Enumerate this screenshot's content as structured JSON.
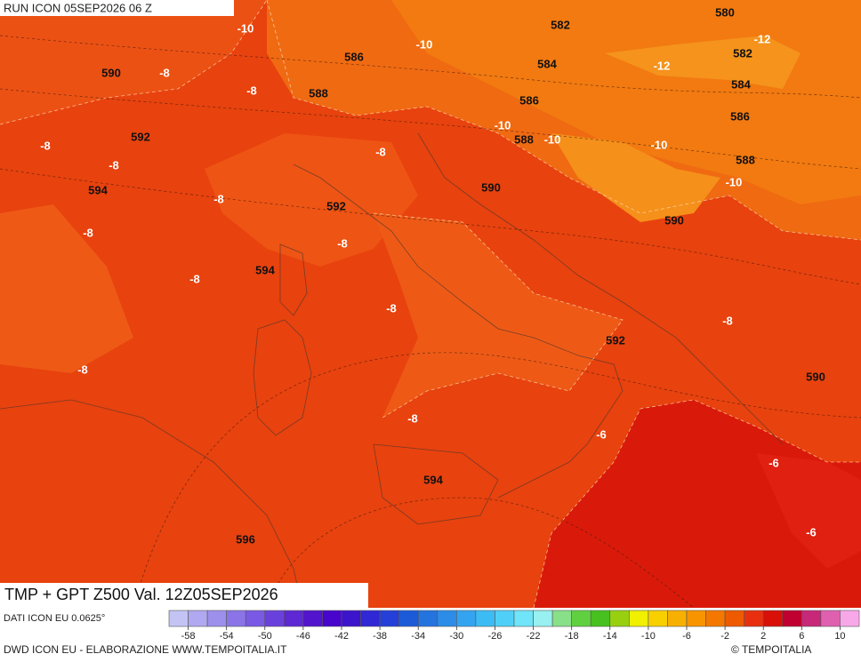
{
  "header": {
    "run": "RUN ICON 05SEP2026 06 Z"
  },
  "map": {
    "title": "TMP + GPT Z500 Val. 12Z05SEP2026",
    "gpt_labels": [
      580,
      582,
      586,
      584,
      582,
      590,
      588,
      584,
      586,
      586,
      592,
      588,
      588,
      594,
      590,
      592,
      590,
      594,
      592,
      590,
      594,
      596
    ],
    "tmp_labels": [
      -10,
      -10,
      -12,
      -8,
      -12,
      -8,
      -8,
      -10,
      -10,
      -10,
      -8,
      -8,
      -10,
      -8,
      -8,
      -8,
      -8,
      -8,
      -8,
      -8,
      -8,
      -6,
      -6,
      -6
    ]
  },
  "colorbar": {
    "colors": [
      "#c4c4f4",
      "#b0a8f0",
      "#9c90ec",
      "#8a74e8",
      "#7a5ae4",
      "#6a40dc",
      "#5e28d4",
      "#5214cc",
      "#4806cc",
      "#3c14cc",
      "#3028d4",
      "#2440d8",
      "#1c5ad8",
      "#2474e0",
      "#2c8ce8",
      "#34a4f0",
      "#3cbcf4",
      "#50d0f8",
      "#70e4f8",
      "#98f0f0",
      "#88e088",
      "#60d040",
      "#48c020",
      "#98d010",
      "#f0f000",
      "#f8d000",
      "#f8b000",
      "#f89400",
      "#f47800",
      "#ee5a00",
      "#e83010",
      "#d81008",
      "#c00030",
      "#c82878",
      "#e060b0",
      "#f8a8e8"
    ],
    "labels": [
      -58,
      -54,
      -50,
      -46,
      -42,
      -38,
      -34,
      -30,
      -26,
      -22,
      -18,
      -14,
      -10,
      -6,
      -2,
      2,
      6,
      10
    ]
  },
  "footer": {
    "data_source": "DATI ICON EU 0.0625°",
    "credit": "DWD ICON EU - ELABORAZIONE WWW.TEMPOITALIA.IT",
    "brand": "© TEMPOITALIA"
  }
}
